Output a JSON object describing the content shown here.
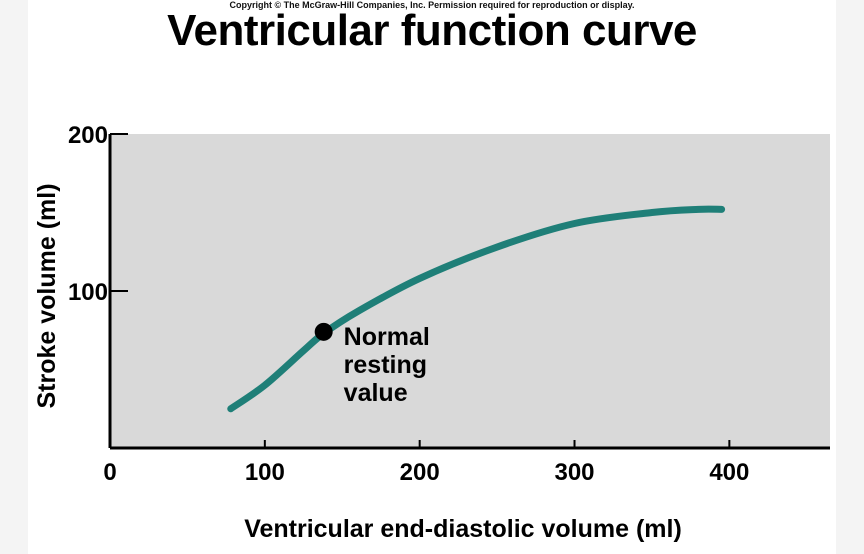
{
  "copyright": "Copyright © The McGraw-Hill Companies, Inc. Permission required for reproduction or display.",
  "chart_data": {
    "type": "line",
    "title": "Ventricular function curve",
    "xlabel": "Ventricular end-diastolic volume (ml)",
    "ylabel": "Stroke volume (ml)",
    "xlim": [
      0,
      465
    ],
    "ylim": [
      0,
      200
    ],
    "x_ticks": [
      0,
      100,
      200,
      300,
      400
    ],
    "y_ticks": [
      100,
      200
    ],
    "grid": false,
    "plot_background": "#d9d9d9",
    "series": [
      {
        "color": "#1f7f78",
        "x": [
          78,
          100,
          125,
          138,
          160,
          200,
          250,
          300,
          350,
          380,
          395
        ],
        "y": [
          25,
          40,
          62,
          73,
          87,
          108,
          128,
          143,
          150,
          152,
          152
        ]
      }
    ],
    "annotations": [
      {
        "label_lines": [
          "Normal",
          "resting",
          "value"
        ],
        "x": 138,
        "y": 74
      }
    ]
  }
}
